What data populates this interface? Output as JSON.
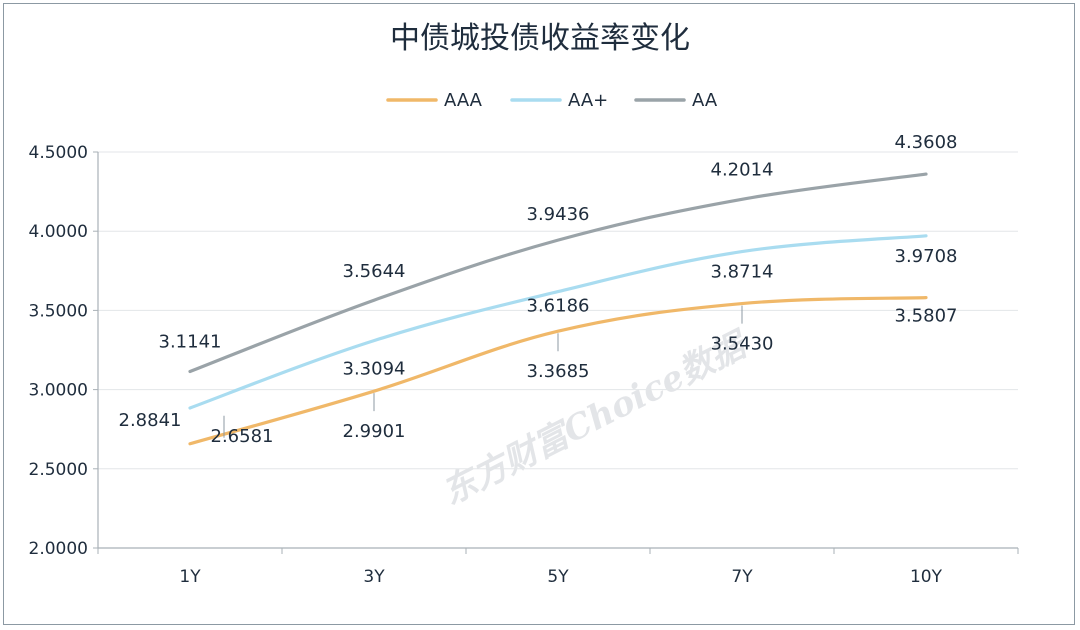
{
  "chart_data": {
    "type": "line",
    "title": "中债城投债收益率变化",
    "categories": [
      "1Y",
      "3Y",
      "5Y",
      "7Y",
      "10Y"
    ],
    "series": [
      {
        "name": "AAA",
        "color": "#f0b869",
        "values": [
          2.6581,
          2.9901,
          3.3685,
          3.543,
          3.5807
        ],
        "labels": [
          "2.6581",
          "2.9901",
          "3.3685",
          "3.5430",
          "3.5807"
        ]
      },
      {
        "name": "AA+",
        "color": "#a9dcf0",
        "values": [
          2.8841,
          3.3094,
          3.6186,
          3.8714,
          3.9708
        ],
        "labels": [
          "2.8841",
          "3.3094",
          "3.6186",
          "3.8714",
          "3.9708"
        ]
      },
      {
        "name": "AA",
        "color": "#9aa3a8",
        "values": [
          3.1141,
          3.5644,
          3.9436,
          4.2014,
          4.3608
        ],
        "labels": [
          "3.1141",
          "3.5644",
          "3.9436",
          "4.2014",
          "4.3608"
        ]
      }
    ],
    "y_ticks": [
      "4.5000",
      "4.0000",
      "3.5000",
      "3.0000",
      "2.5000",
      "2.0000"
    ],
    "ylim": [
      2.0,
      4.5
    ],
    "legend_position": "top",
    "grid": true,
    "watermark": "东方财富Choice数据"
  }
}
